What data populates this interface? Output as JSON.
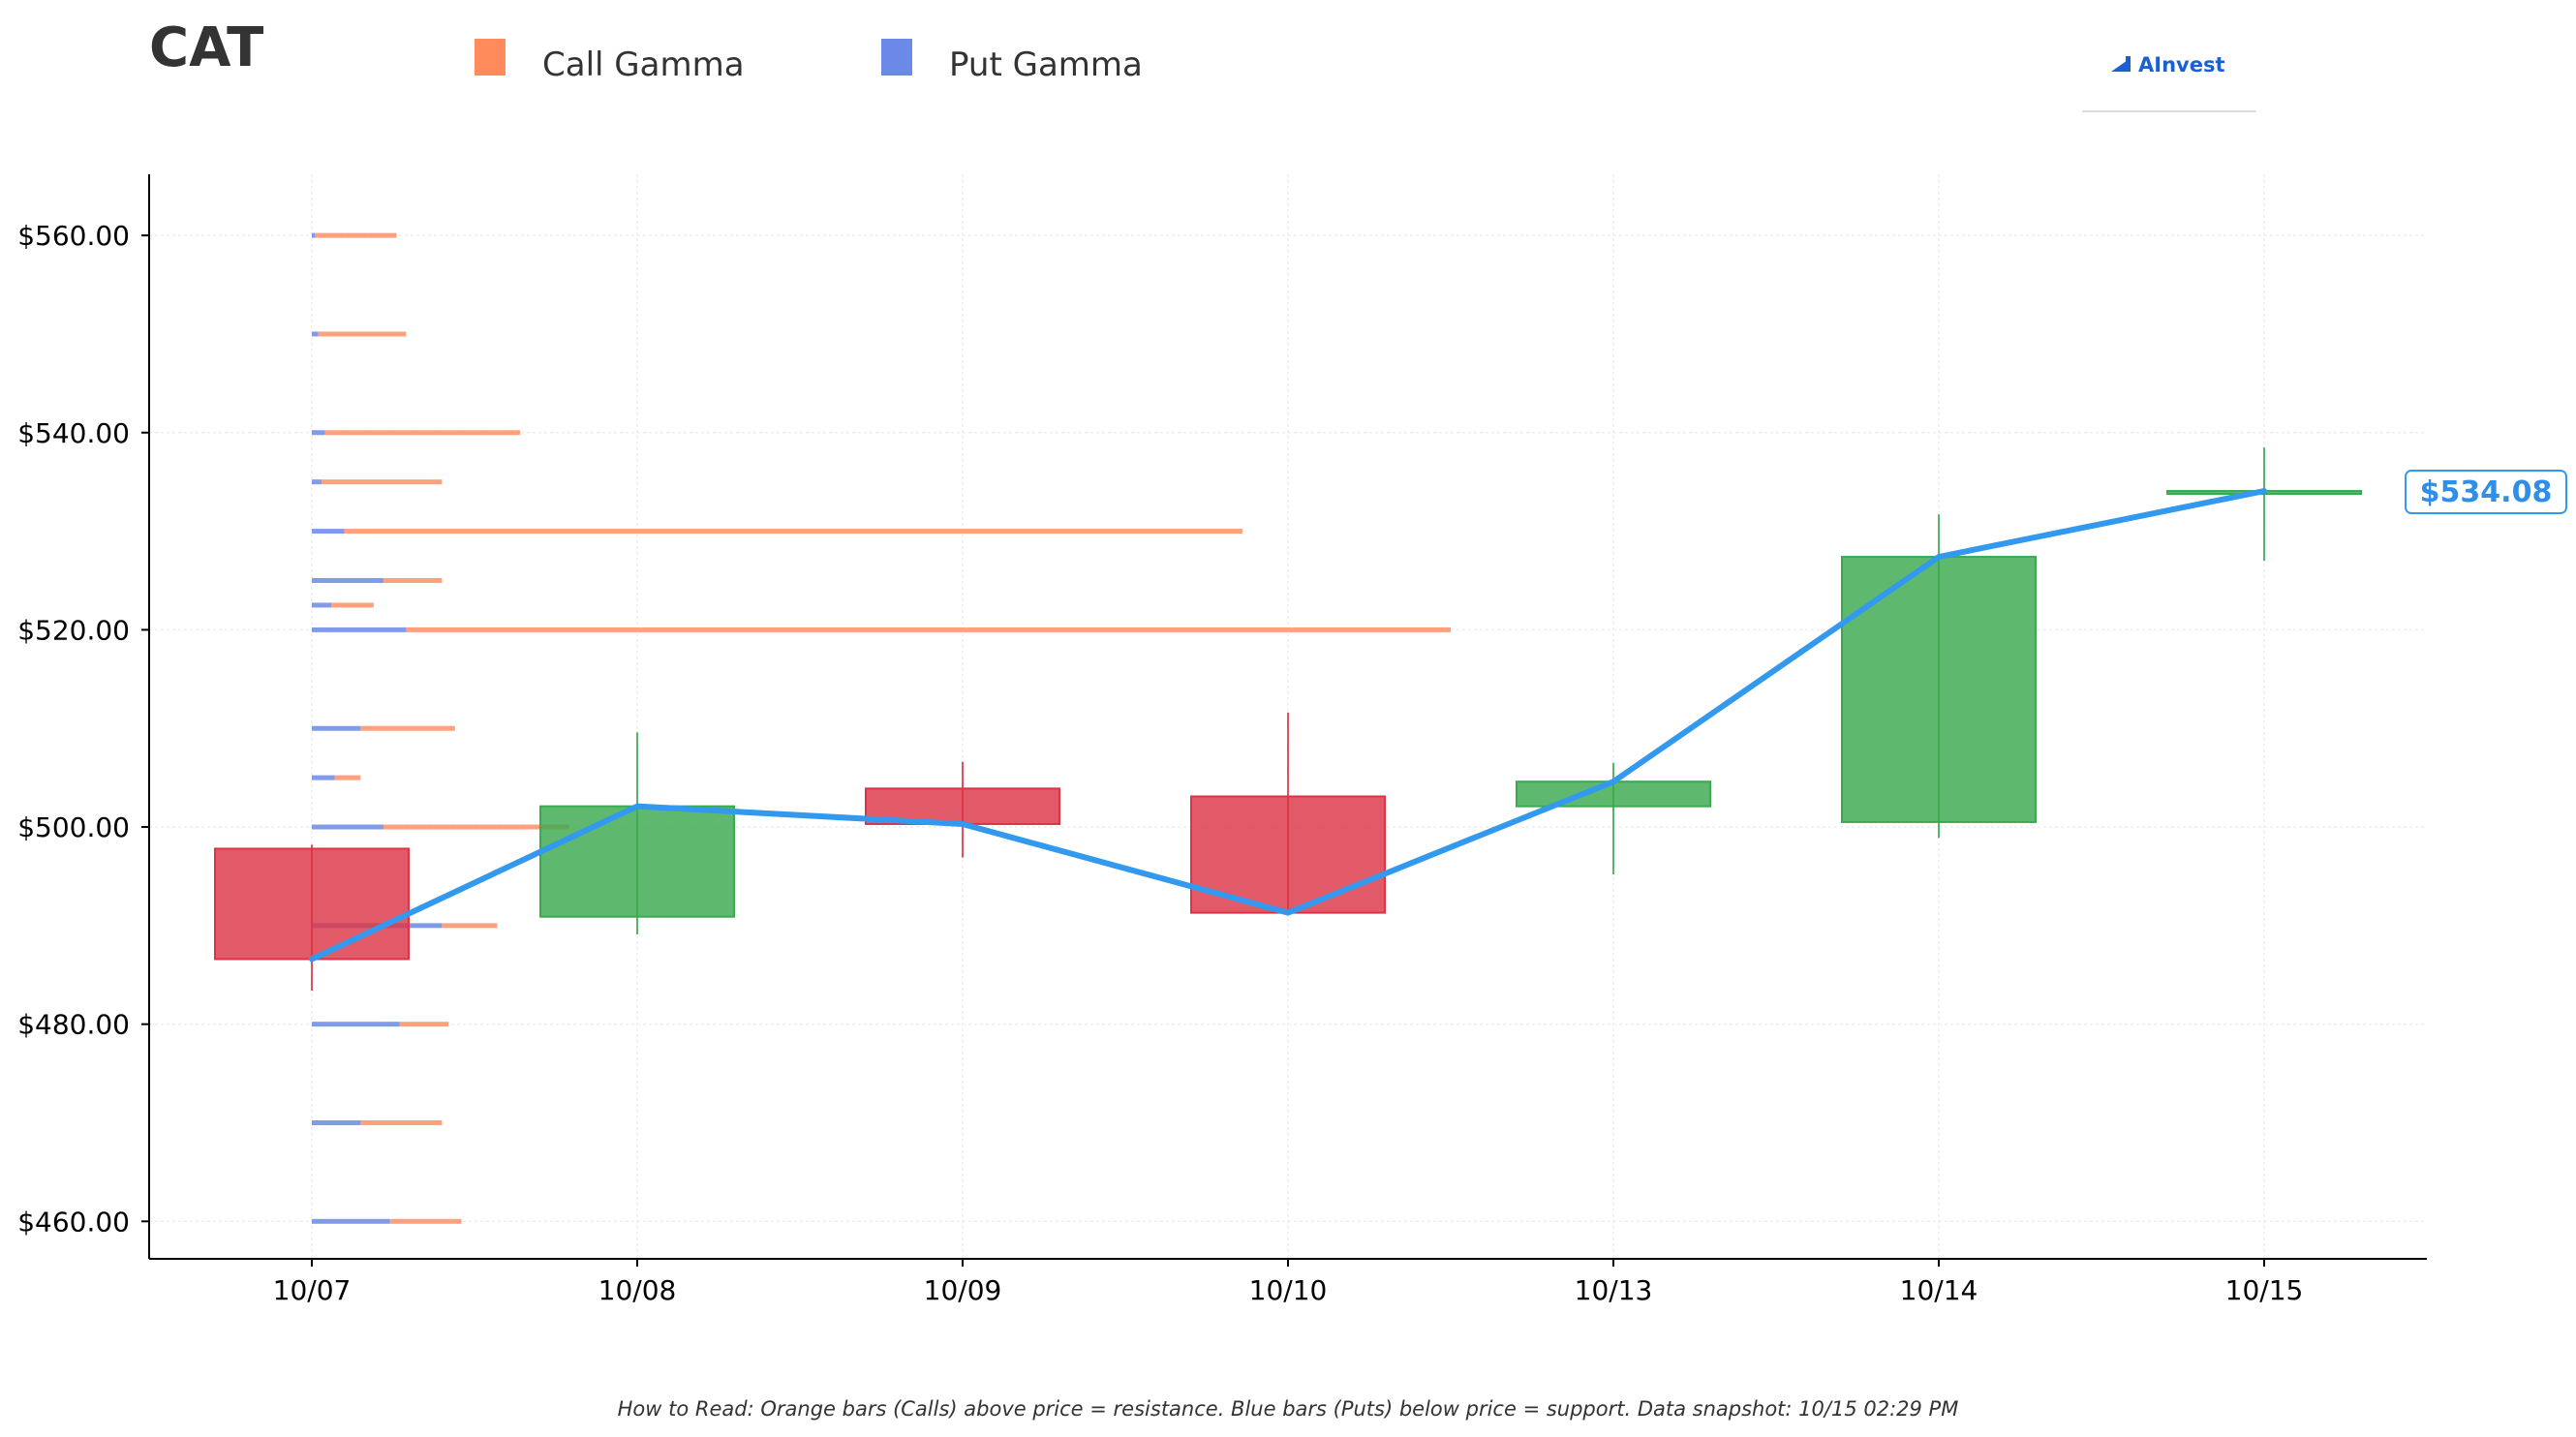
{
  "chart_data": {
    "type": "candlestick",
    "title": "CAT",
    "legend": {
      "placement": "top",
      "items": [
        {
          "name": "Call Gamma",
          "color": "#ff8a5c"
        },
        {
          "name": "Put Gamma",
          "color": "#6b8ae8"
        }
      ]
    },
    "categories": [
      "10/07",
      "10/08",
      "10/09",
      "10/10",
      "10/13",
      "10/14",
      "10/15"
    ],
    "y_tick_labels": [
      "$460.00",
      "$480.00",
      "$500.00",
      "$520.00",
      "$540.00",
      "$560.00"
    ],
    "y_ticks": [
      460,
      480,
      500,
      520,
      540,
      560
    ],
    "ylim": [
      456.2,
      566.2
    ],
    "grid": true,
    "candles": [
      {
        "date": "10/07",
        "open": 497.8,
        "high": 498.2,
        "low": 483.4,
        "close": 486.6
      },
      {
        "date": "10/08",
        "open": 490.9,
        "high": 509.6,
        "low": 489.1,
        "close": 502.1
      },
      {
        "date": "10/09",
        "open": 503.9,
        "high": 506.6,
        "low": 496.9,
        "close": 500.3
      },
      {
        "date": "10/10",
        "open": 503.1,
        "high": 511.6,
        "low": 491.3,
        "close": 491.3
      },
      {
        "date": "10/13",
        "open": 502.1,
        "high": 506.5,
        "low": 495.2,
        "close": 504.6
      },
      {
        "date": "10/14",
        "open": 500.5,
        "high": 531.7,
        "low": 498.9,
        "close": 527.4
      },
      {
        "date": "10/15",
        "open": 534.08,
        "high": 538.5,
        "low": 527.0,
        "close": 534.08
      }
    ],
    "price_line": {
      "color": "#3399ee",
      "values": [
        486.6,
        502.1,
        500.3,
        491.3,
        504.6,
        527.4,
        534.08
      ]
    },
    "last_price_label": "$534.08",
    "gamma_scale_note": "bar lengths in 10/07-to-10/08 spacing units",
    "gamma": [
      {
        "strike": 560,
        "put": 0.01,
        "call": 0.25
      },
      {
        "strike": 550,
        "put": 0.02,
        "call": 0.27
      },
      {
        "strike": 540,
        "put": 0.04,
        "call": 0.6
      },
      {
        "strike": 535,
        "put": 0.03,
        "call": 0.37
      },
      {
        "strike": 530,
        "put": 0.1,
        "call": 2.76
      },
      {
        "strike": 525,
        "put": 0.22,
        "call": 0.18
      },
      {
        "strike": 522.5,
        "put": 0.06,
        "call": 0.13
      },
      {
        "strike": 520,
        "put": 0.29,
        "call": 3.21
      },
      {
        "strike": 510,
        "put": 0.15,
        "call": 0.29
      },
      {
        "strike": 505,
        "put": 0.07,
        "call": 0.08
      },
      {
        "strike": 500,
        "put": 0.22,
        "call": 0.57
      },
      {
        "strike": 490,
        "put": 0.4,
        "call": 0.17
      },
      {
        "strike": 480,
        "put": 0.27,
        "call": 0.15
      },
      {
        "strike": 470,
        "put": 0.15,
        "call": 0.25
      },
      {
        "strike": 460,
        "put": 0.24,
        "call": 0.22
      }
    ],
    "colors": {
      "up": "#3aaa4f",
      "down": "#dc3545"
    }
  },
  "brand": {
    "name": "AInvest"
  },
  "footnote": "How to Read: Orange bars (Calls) above price = resistance. Blue bars (Puts) below price = support. Data snapshot: 10/15 02:29 PM"
}
